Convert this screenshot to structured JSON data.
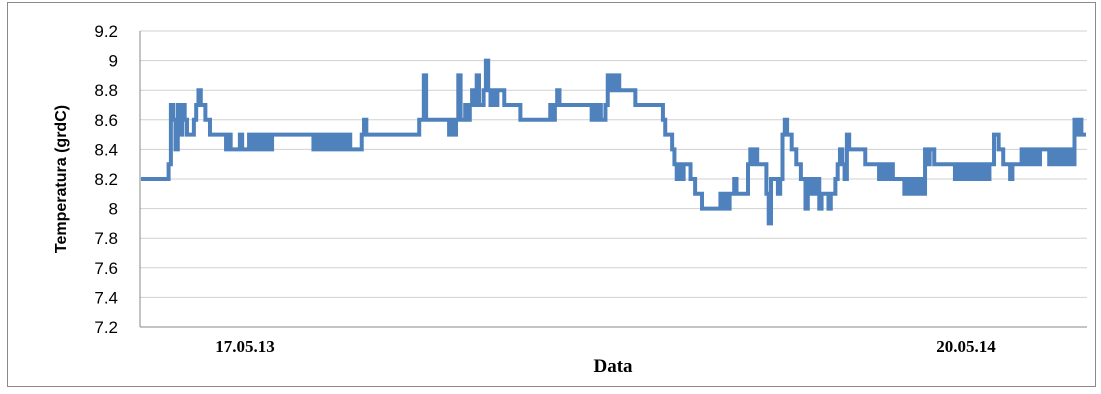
{
  "chart_data": {
    "type": "line",
    "title": "",
    "xlabel": "Data",
    "ylabel": "Temperatura (grdC)",
    "ylim": [
      7.2,
      9.2
    ],
    "yticks": [
      "9.2",
      "9",
      "8.8",
      "8.6",
      "8.4",
      "8.2",
      "8",
      "7.8",
      "7.6",
      "7.4",
      "7.2"
    ],
    "x_category_labels": [
      "17.05.13",
      "20.05.14"
    ],
    "grid": "horizontal",
    "legend": "none",
    "line_color": "#4f81bd",
    "series": [
      {
        "values": [
          8.2,
          8.2,
          8.2,
          8.2,
          8.2,
          8.2,
          8.2,
          8.2,
          8.2,
          8.2,
          8.2,
          8.2,
          8.3,
          8.7,
          8.6,
          8.4,
          8.7,
          8.5,
          8.7,
          8.6,
          8.5,
          8.5,
          8.5,
          8.6,
          8.7,
          8.8,
          8.7,
          8.7,
          8.6,
          8.6,
          8.5,
          8.5,
          8.5,
          8.5,
          8.5,
          8.5,
          8.5,
          8.4,
          8.5,
          8.4,
          8.4,
          8.4,
          8.4,
          8.5,
          8.4,
          8.4,
          8.4,
          8.5,
          8.4,
          8.5,
          8.4,
          8.5,
          8.4,
          8.5,
          8.4,
          8.5,
          8.4,
          8.5,
          8.5,
          8.5,
          8.5,
          8.5,
          8.5,
          8.5,
          8.5,
          8.5,
          8.5,
          8.5,
          8.5,
          8.5,
          8.5,
          8.5,
          8.5,
          8.5,
          8.5,
          8.4,
          8.5,
          8.4,
          8.5,
          8.4,
          8.5,
          8.4,
          8.5,
          8.4,
          8.5,
          8.4,
          8.5,
          8.4,
          8.5,
          8.4,
          8.5,
          8.4,
          8.4,
          8.4,
          8.4,
          8.4,
          8.5,
          8.6,
          8.5,
          8.5,
          8.5,
          8.5,
          8.5,
          8.5,
          8.5,
          8.5,
          8.5,
          8.5,
          8.5,
          8.5,
          8.5,
          8.5,
          8.5,
          8.5,
          8.5,
          8.5,
          8.5,
          8.5,
          8.5,
          8.5,
          8.5,
          8.6,
          8.6,
          8.9,
          8.6,
          8.6,
          8.6,
          8.6,
          8.6,
          8.6,
          8.6,
          8.6,
          8.6,
          8.6,
          8.5,
          8.6,
          8.5,
          8.6,
          8.9,
          8.6,
          8.6,
          8.7,
          8.6,
          8.7,
          8.8,
          8.7,
          8.9,
          8.7,
          8.7,
          8.8,
          9.0,
          8.8,
          8.7,
          8.8,
          8.7,
          8.8,
          8.8,
          8.8,
          8.7,
          8.7,
          8.7,
          8.7,
          8.7,
          8.7,
          8.7,
          8.6,
          8.6,
          8.6,
          8.6,
          8.6,
          8.6,
          8.6,
          8.6,
          8.6,
          8.6,
          8.6,
          8.6,
          8.6,
          8.7,
          8.6,
          8.7,
          8.8,
          8.7,
          8.7,
          8.7,
          8.7,
          8.7,
          8.7,
          8.7,
          8.7,
          8.7,
          8.7,
          8.7,
          8.7,
          8.7,
          8.7,
          8.6,
          8.7,
          8.6,
          8.7,
          8.6,
          8.6,
          8.7,
          8.9,
          8.8,
          8.9,
          8.8,
          8.9,
          8.8,
          8.8,
          8.8,
          8.8,
          8.8,
          8.8,
          8.8,
          8.7,
          8.7,
          8.7,
          8.7,
          8.7,
          8.7,
          8.7,
          8.7,
          8.7,
          8.7,
          8.7,
          8.7,
          8.6,
          8.5,
          8.5,
          8.5,
          8.4,
          8.3,
          8.2,
          8.3,
          8.2,
          8.3,
          8.3,
          8.3,
          8.2,
          8.2,
          8.1,
          8.1,
          8.1,
          8.0,
          8.0,
          8.0,
          8.0,
          8.0,
          8.0,
          8.0,
          8.0,
          8.1,
          8.0,
          8.1,
          8.0,
          8.1,
          8.1,
          8.2,
          8.1,
          8.1,
          8.1,
          8.1,
          8.1,
          8.3,
          8.4,
          8.3,
          8.4,
          8.3,
          8.3,
          8.3,
          8.3,
          8.1,
          7.9,
          8.2,
          8.2,
          8.2,
          8.1,
          8.2,
          8.5,
          8.6,
          8.5,
          8.5,
          8.4,
          8.4,
          8.3,
          8.3,
          8.2,
          8.2,
          8.0,
          8.2,
          8.1,
          8.2,
          8.1,
          8.2,
          8.0,
          8.1,
          8.1,
          8.1,
          8.0,
          8.1,
          8.1,
          8.2,
          8.3,
          8.4,
          8.3,
          8.2,
          8.5,
          8.4,
          8.4,
          8.4,
          8.4,
          8.4,
          8.4,
          8.4,
          8.3,
          8.3,
          8.3,
          8.3,
          8.3,
          8.3,
          8.2,
          8.3,
          8.2,
          8.3,
          8.2,
          8.3,
          8.2,
          8.2,
          8.2,
          8.2,
          8.2,
          8.1,
          8.2,
          8.1,
          8.2,
          8.1,
          8.2,
          8.1,
          8.2,
          8.1,
          8.4,
          8.3,
          8.4,
          8.4,
          8.3,
          8.3,
          8.3,
          8.3,
          8.3,
          8.3,
          8.3,
          8.3,
          8.3,
          8.2,
          8.3,
          8.2,
          8.3,
          8.2,
          8.3,
          8.2,
          8.3,
          8.2,
          8.3,
          8.2,
          8.3,
          8.2,
          8.3,
          8.2,
          8.3,
          8.3,
          8.5,
          8.5,
          8.4,
          8.4,
          8.3,
          8.3,
          8.3,
          8.2,
          8.3,
          8.3,
          8.3,
          8.3,
          8.4,
          8.3,
          8.4,
          8.3,
          8.4,
          8.3,
          8.4,
          8.3,
          8.4,
          8.4,
          8.4,
          8.4,
          8.3,
          8.4,
          8.3,
          8.4,
          8.3,
          8.4,
          8.3,
          8.4,
          8.3,
          8.4,
          8.3,
          8.6,
          8.5,
          8.6,
          8.5,
          8.5,
          8.5
        ]
      }
    ]
  }
}
